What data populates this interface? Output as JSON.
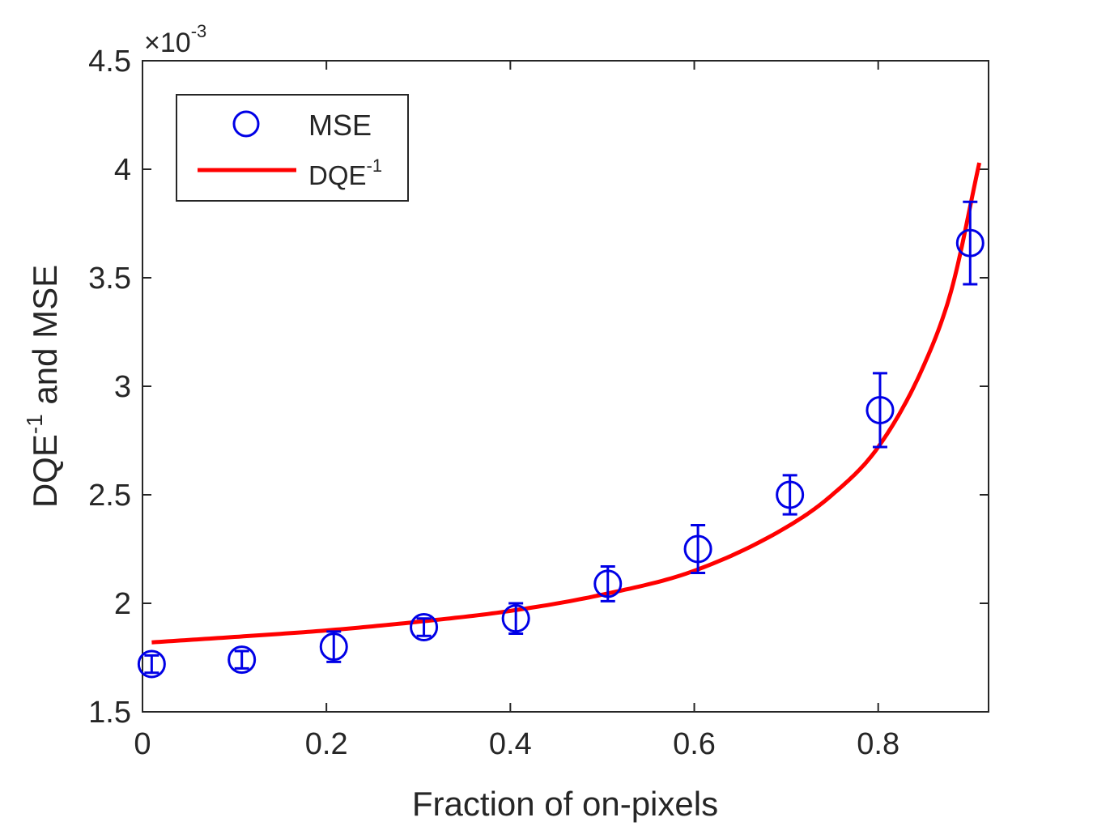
{
  "chart_data": {
    "type": "scatter",
    "xlabel": "Fraction of on-pixels",
    "ylabel_main": "DQE",
    "ylabel_sup": "-1",
    "ylabel_rest": " and MSE",
    "exponent_prefix": "×10",
    "exponent_sup": "-3",
    "xlim": [
      0,
      0.92
    ],
    "ylim": [
      1.5,
      4.5
    ],
    "xticks": [
      0,
      0.2,
      0.4,
      0.6,
      0.8
    ],
    "xtick_labels": [
      "0",
      "0.2",
      "0.4",
      "0.6",
      "0.8"
    ],
    "yticks": [
      1.5,
      2,
      2.5,
      3,
      3.5,
      4,
      4.5
    ],
    "ytick_labels": [
      "1.5",
      "2",
      "2.5",
      "3",
      "3.5",
      "4",
      "4.5"
    ],
    "legend": {
      "position": "top-left",
      "mse_label": "MSE",
      "dqe_label_main": "DQE",
      "dqe_label_sup": "-1"
    },
    "series": [
      {
        "name": "MSE",
        "kind": "markers-with-errorbars",
        "color": "#0000e6",
        "x": [
          0.01,
          0.108,
          0.208,
          0.306,
          0.406,
          0.506,
          0.604,
          0.704,
          0.802,
          0.9
        ],
        "y": [
          1.72,
          1.74,
          1.8,
          1.89,
          1.93,
          2.09,
          2.25,
          2.5,
          2.89,
          3.66
        ],
        "err_low": [
          0.04,
          0.04,
          0.07,
          0.04,
          0.07,
          0.08,
          0.11,
          0.09,
          0.17,
          0.19
        ],
        "err_high": [
          0.04,
          0.04,
          0.07,
          0.04,
          0.07,
          0.08,
          0.11,
          0.09,
          0.17,
          0.19
        ]
      },
      {
        "name": "DQE^-1",
        "kind": "line",
        "color": "#ff0000",
        "x": [
          0.01,
          0.1,
          0.2,
          0.3,
          0.4,
          0.5,
          0.6,
          0.7,
          0.75,
          0.8,
          0.85,
          0.88,
          0.91
        ],
        "y": [
          1.82,
          1.845,
          1.875,
          1.915,
          1.965,
          2.04,
          2.15,
          2.35,
          2.5,
          2.72,
          3.1,
          3.45,
          4.03
        ]
      }
    ]
  }
}
